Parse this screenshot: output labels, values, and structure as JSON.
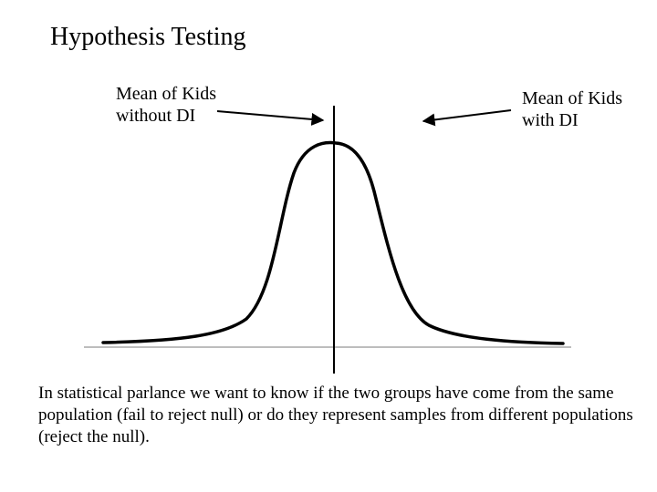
{
  "title": "Hypothesis Testing",
  "labels": {
    "left": {
      "line1": "Mean of Kids",
      "line2": "without DI"
    },
    "right": {
      "line1": "Mean of Kids",
      "line2": "with DI"
    }
  },
  "caption": "In statistical parlance we want to know if the two groups have come from the same population (fail to reject null) or do they represent samples from different populations (reject the null).",
  "colors": {
    "ink": "#000000",
    "baseline": "#bdbdbd",
    "background": "#ffffff"
  }
}
